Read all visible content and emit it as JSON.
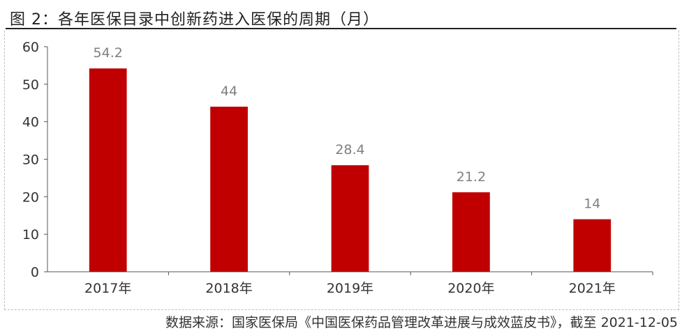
{
  "title": "图 2：各年医保目录中创新药进入医保的周期（月）",
  "source": "数据来源：国家医保局《中国医保药品管理改革进展与成效蓝皮书》，截至 2021-12-05",
  "colors": {
    "bar": "#C00000",
    "axis": "#555555",
    "label": "#7f7f7f",
    "text": "#333333"
  },
  "chart_data": {
    "type": "bar",
    "categories": [
      "2017年",
      "2018年",
      "2019年",
      "2020年",
      "2021年"
    ],
    "values": [
      54.2,
      44,
      28.4,
      21.2,
      14
    ],
    "title": "各年医保目录中创新药进入医保的周期（月）",
    "xlabel": "",
    "ylabel": "",
    "ylim": [
      0,
      60
    ],
    "yticks": [
      0,
      10,
      20,
      30,
      40,
      50,
      60
    ],
    "data_labels": [
      "54.2",
      "44",
      "28.4",
      "21.2",
      "14"
    ],
    "grid": false,
    "legend": "none"
  }
}
